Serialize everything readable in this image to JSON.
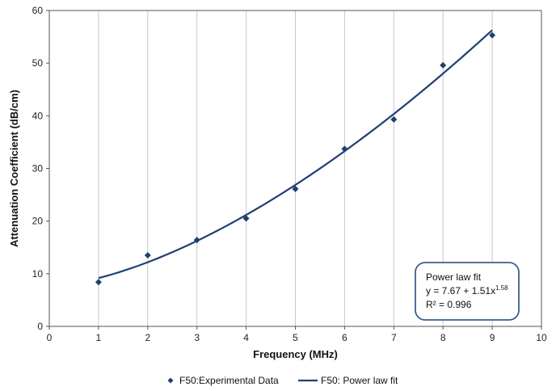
{
  "chart_data": {
    "type": "scatter",
    "xlabel": "Frequency (MHz)",
    "ylabel": "Attenuation Coefficient (dB/cm)",
    "xlim": [
      0,
      10
    ],
    "ylim": [
      0,
      60
    ],
    "xticks": [
      0,
      1,
      2,
      3,
      4,
      5,
      6,
      7,
      8,
      9,
      10
    ],
    "yticks": [
      0,
      10,
      20,
      30,
      40,
      50,
      60
    ],
    "grid": "vertical",
    "legend_position": "bottom",
    "colors": {
      "series": "#1f3f73",
      "annotation_border": "#3b5f8f",
      "grid": "#c8c8c8"
    },
    "series": [
      {
        "name": "F50:Experimental Data",
        "kind": "markers",
        "marker": "diamond",
        "x": [
          1,
          2,
          3,
          4,
          5,
          6,
          7,
          8,
          9
        ],
        "y": [
          8.4,
          13.5,
          16.4,
          20.5,
          26.1,
          33.7,
          39.3,
          49.6,
          55.3
        ]
      },
      {
        "name": "F50: Power law fit",
        "kind": "line",
        "fit": {
          "a": 7.67,
          "b": 1.51,
          "exponent": 1.58
        },
        "x_range": [
          1,
          9
        ]
      }
    ],
    "annotation": {
      "title": "Power law fit",
      "eq_main": "y = 7.67 + 1.51x",
      "eq_exp": "1.58",
      "r2": "R² = 0.996"
    }
  }
}
